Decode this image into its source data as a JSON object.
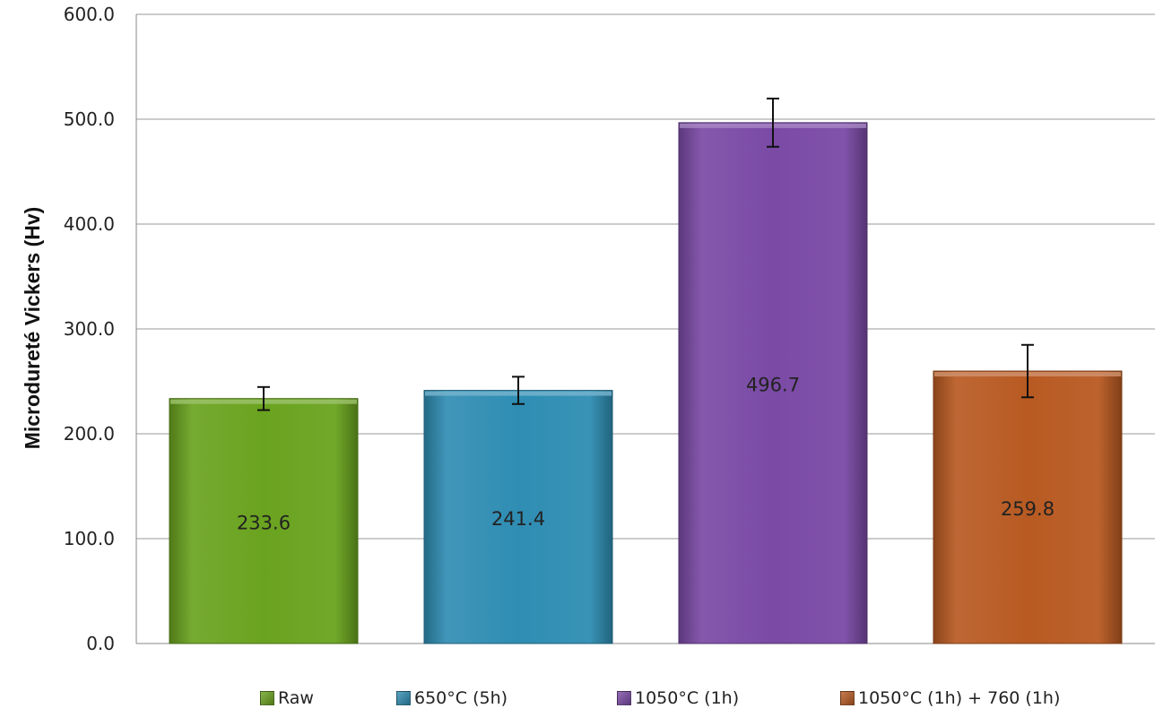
{
  "chart_data": {
    "type": "bar",
    "ylabel": "Microdureté Vickers (Hv)",
    "xlabel": "",
    "ylim": [
      0,
      600
    ],
    "yticks": [
      "0.0",
      "100.0",
      "200.0",
      "300.0",
      "400.0",
      "500.0",
      "600.0"
    ],
    "grid": true,
    "legend_position": "bottom",
    "series": [
      {
        "name": "Raw",
        "value": 233.6,
        "label": "233.6",
        "error": 11,
        "color": "#6aa31f"
      },
      {
        "name": "650°C (5h)",
        "value": 241.4,
        "label": "241.4",
        "error": 13,
        "color": "#2f8db3"
      },
      {
        "name": "1050°C (1h)",
        "value": 496.7,
        "label": "496.7",
        "error": 23,
        "color": "#7a4aa5"
      },
      {
        "name": "1050°C (1h) + 760 (1h)",
        "value": 259.8,
        "label": "259.8",
        "error": 25,
        "color": "#b85a22"
      }
    ]
  }
}
